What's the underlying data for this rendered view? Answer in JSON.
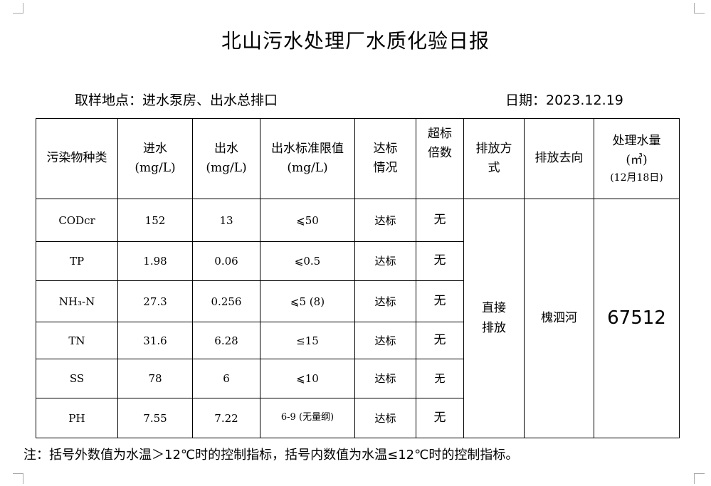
{
  "title": "北山污水处理厂水质化验日报",
  "location": "取样地点：进水泵房、出水总排口",
  "date": "日期：2023.12.19",
  "headers": {
    "pollutant": "污染物种类",
    "inflow": "进水",
    "inflow_unit": "(mg/L)",
    "outflow": "出水",
    "outflow_unit": "(mg/L)",
    "limit": "出水标准限值",
    "limit_unit": "(mg/L)",
    "status": "达标情况",
    "exceed": "超标倍数",
    "discharge_method": "排放方式",
    "destination": "排放去向",
    "volume": "处理水量",
    "volume_unit": "(㎥)",
    "volume_date": "(12月18日)"
  },
  "rows": [
    {
      "name": "CODcr",
      "in": "152",
      "out": "13",
      "limit": "⩽50",
      "status": "达标",
      "exceed": "无"
    },
    {
      "name": "TP",
      "in": "1.98",
      "out": "0.06",
      "limit": "⩽0.5",
      "status": "达标",
      "exceed": "无"
    },
    {
      "name": "NH₃-N",
      "in": "27.3",
      "out": "0.256",
      "limit": "⩽5 (8)",
      "status": "达标",
      "exceed": "无"
    },
    {
      "name": "TN",
      "in": "31.6",
      "out": "6.28",
      "limit": "≤15",
      "status": "达标",
      "exceed": "无"
    },
    {
      "name": "SS",
      "in": "78",
      "out": "6",
      "limit": "⩽10",
      "status": "达标",
      "exceed": "无"
    },
    {
      "name": "PH",
      "in": "7.55",
      "out": "7.22",
      "limit": "6-9 (无量纲)",
      "status": "达标",
      "exceed": "无"
    }
  ],
  "discharge_method": "直接排放",
  "destination": "槐泗河",
  "volume": "67512",
  "note": "注：括号外数值为水温＞12℃时的控制指标，括号内数值为水温≤12℃时的控制指标。"
}
